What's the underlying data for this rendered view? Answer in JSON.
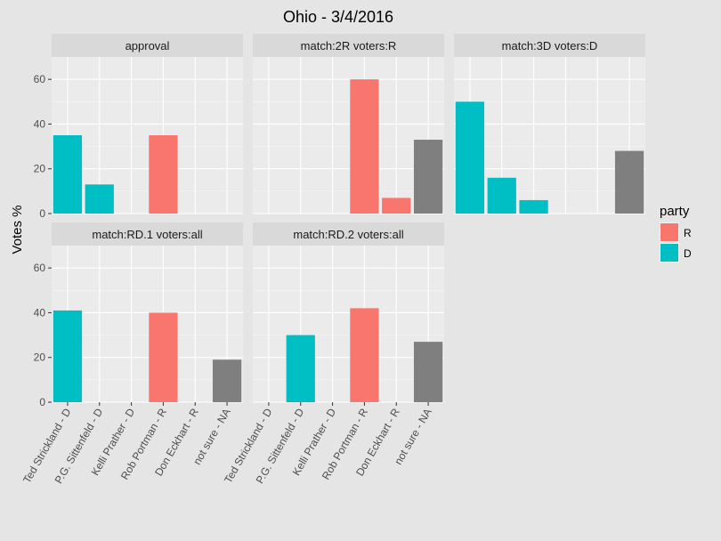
{
  "chart_data": {
    "type": "bar",
    "title": "Ohio - 3/4/2016",
    "ylabel": "Votes %",
    "xlabel": "",
    "ylim": [
      0,
      70
    ],
    "yticks": [
      0,
      20,
      40,
      60
    ],
    "grid": true,
    "categories": [
      "Ted Strickland - D",
      "P.G. Sittenfeld - D",
      "Kelli Prather - D",
      "Rob Portman - R",
      "Don Eckhart - R",
      "not sure - NA"
    ],
    "category_party": [
      "D",
      "D",
      "D",
      "R",
      "R",
      "NA"
    ],
    "panels": [
      {
        "label": "approval",
        "values": [
          35,
          13,
          null,
          35,
          null,
          null
        ]
      },
      {
        "label": "match:2R     voters:R",
        "values": [
          null,
          null,
          null,
          60,
          7,
          33
        ]
      },
      {
        "label": "match:3D     voters:D",
        "values": [
          50,
          16,
          6,
          null,
          null,
          28
        ]
      },
      {
        "label": "match:RD.1     voters:all",
        "values": [
          41,
          null,
          null,
          40,
          null,
          19
        ]
      },
      {
        "label": "match:RD.2     voters:all",
        "values": [
          null,
          30,
          null,
          42,
          null,
          27
        ]
      }
    ],
    "legend": {
      "title": "party",
      "placement": "right",
      "entries": [
        {
          "label": "R",
          "color": "#F8766D"
        },
        {
          "label": "D",
          "color": "#00BFC4"
        }
      ]
    },
    "colors": {
      "R": "#F8766D",
      "D": "#00BFC4",
      "NA": "#7F7F7F"
    }
  }
}
